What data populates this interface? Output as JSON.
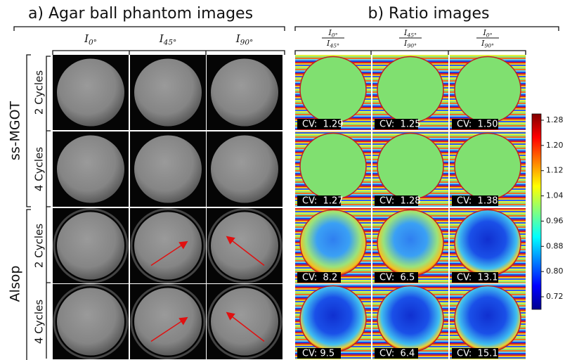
{
  "panel_a": {
    "title": "a) Agar ball phantom images",
    "columns": [
      {
        "symbol": "I",
        "subscript": "0°"
      },
      {
        "symbol": "I",
        "subscript": "45°"
      },
      {
        "symbol": "I",
        "subscript": "90°"
      }
    ],
    "groups": [
      {
        "label": "ss-MGOT",
        "rows": [
          "2 Cycles",
          "4 Cycles"
        ]
      },
      {
        "label": "Alsop",
        "rows": [
          "2 Cycles",
          "4 Cycles"
        ]
      }
    ]
  },
  "panel_b": {
    "title": "b) Ratio images",
    "columns": [
      {
        "numerator": {
          "symbol": "I",
          "subscript": "0°"
        },
        "denominator": {
          "symbol": "I",
          "subscript": "45°"
        }
      },
      {
        "numerator": {
          "symbol": "I",
          "subscript": "45°"
        },
        "denominator": {
          "symbol": "I",
          "subscript": "90°"
        }
      },
      {
        "numerator": {
          "symbol": "I",
          "subscript": "0°"
        },
        "denominator": {
          "symbol": "I",
          "subscript": "90°"
        }
      }
    ],
    "cv": [
      [
        "CV:  1.29",
        "CV:  1.25",
        "CV:  1.50"
      ],
      [
        "CV:  1.27",
        "CV:  1.28",
        "CV:  1.38"
      ],
      [
        "CV:  8.2",
        "CV:  6.5",
        "CV:  13.1"
      ],
      [
        "CV: 9.5",
        "CV:  6.4",
        "CV:  15.1"
      ]
    ]
  },
  "colorbar": {
    "lim": [
      0.68,
      1.3
    ],
    "ticks": [
      {
        "value": 1.28,
        "label": "1.28"
      },
      {
        "value": 1.2,
        "label": "1.20"
      },
      {
        "value": 1.12,
        "label": "1.12"
      },
      {
        "value": 1.04,
        "label": "1.04"
      },
      {
        "value": 0.96,
        "label": "0.96"
      },
      {
        "value": 0.88,
        "label": "0.88"
      },
      {
        "value": 0.8,
        "label": "0.80"
      },
      {
        "value": 0.72,
        "label": "0.72"
      }
    ]
  }
}
